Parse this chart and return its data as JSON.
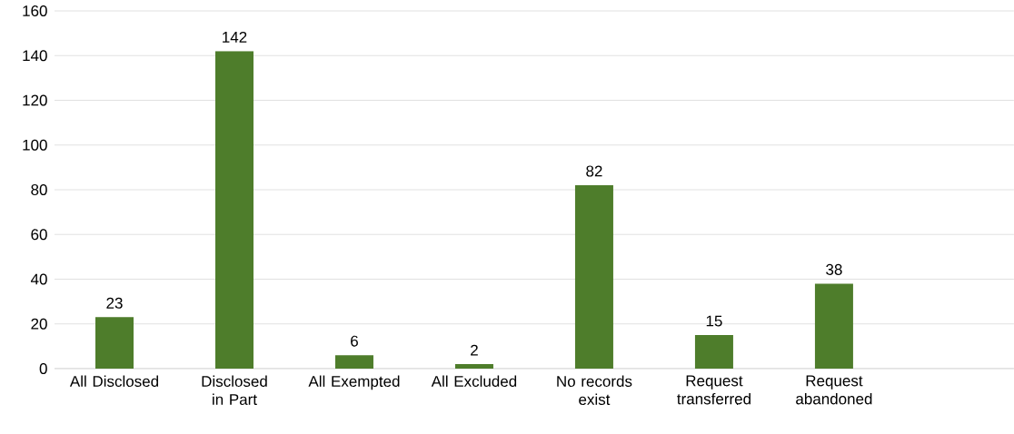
{
  "chart_data": {
    "type": "bar",
    "categories": [
      "All Disclosed",
      "Disclosed in Part",
      "All Exempted",
      "All Excluded",
      "No records exist",
      "Request transferred",
      "Request abandoned",
      null
    ],
    "values": [
      23,
      142,
      6,
      2,
      82,
      15,
      38,
      null
    ],
    "color": "#4e7d2b",
    "ylim": [
      0,
      160
    ],
    "yticks": [
      0,
      20,
      40,
      60,
      80,
      100,
      120,
      140,
      160
    ],
    "grid": "y",
    "data_labels": true
  }
}
